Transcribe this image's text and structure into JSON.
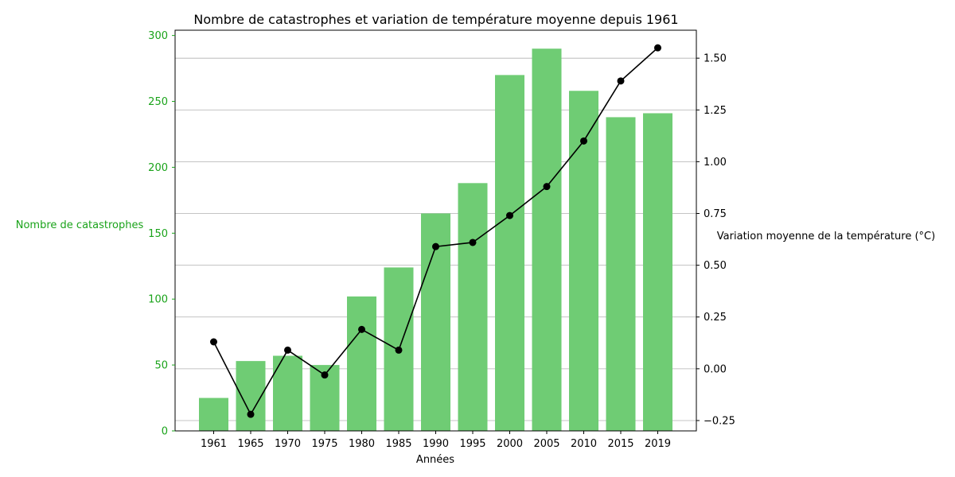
{
  "chart_data": {
    "type": "bar",
    "title": "Nombre de catastrophes et variation de température moyenne depuis 1961",
    "xlabel": "Années",
    "ylabel_left": "Nombre de catastrophes",
    "ylabel_right": "Variation moyenne de la température (°C)",
    "categories": [
      "1961",
      "1965",
      "1970",
      "1975",
      "1980",
      "1985",
      "1990",
      "1995",
      "2000",
      "2005",
      "2010",
      "2015",
      "2019"
    ],
    "series": [
      {
        "axis": "left",
        "type": "bar",
        "color": "#6fcc74",
        "values": [
          25,
          53,
          57,
          50,
          102,
          124,
          165,
          188,
          270,
          290,
          258,
          238,
          241
        ]
      },
      {
        "axis": "right",
        "type": "line",
        "color": "#000000",
        "values": [
          0.13,
          -0.22,
          0.09,
          -0.03,
          0.19,
          0.09,
          0.59,
          0.61,
          0.74,
          0.88,
          1.1,
          1.39,
          1.55
        ]
      }
    ],
    "ylim_left": [
      0,
      304
    ],
    "ylim_right": [
      -0.3,
      1.635
    ],
    "yticks_left": [
      0,
      50,
      100,
      150,
      200,
      250,
      300
    ],
    "yticks_right": [
      -0.25,
      0.0,
      0.25,
      0.5,
      0.75,
      1.0,
      1.25,
      1.5
    ],
    "yticklabels_right": [
      "−0.25",
      "0.00",
      "0.25",
      "0.50",
      "0.75",
      "1.00",
      "1.25",
      "1.50"
    ],
    "grid": "horizontal, right axis",
    "left_axis_color": "#1aa31a"
  }
}
